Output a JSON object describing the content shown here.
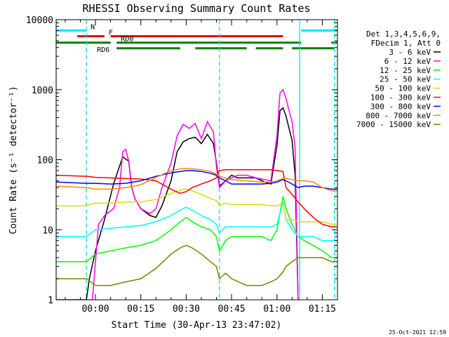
{
  "chart_data": {
    "type": "line",
    "title": "RHESSI Observing Summary Count Rates",
    "xlabel": "Start Time (30-Apr-13 23:47:02)",
    "ylabel": "Count Rate (s⁻¹ detector⁻¹)",
    "yscale": "log",
    "ylim": [
      1,
      10000
    ],
    "y_tick_labels": [
      "1",
      "10",
      "100",
      "1000",
      "10000"
    ],
    "y_tick_values": [
      1,
      10,
      100,
      1000,
      10000
    ],
    "xlim_minutes": [
      -13,
      80
    ],
    "x_tick_labels": [
      "00:00",
      "00:15",
      "00:30",
      "00:45",
      "01:00",
      "01:15"
    ],
    "x_tick_minutes": [
      0,
      15,
      30,
      45,
      60,
      75
    ],
    "timestamp": "25-Oct-2021 12:59",
    "legend_header": [
      "Det 1,3,4,5,6,9,",
      "FDecim 1, Att 0"
    ],
    "flags": [
      {
        "label": "N",
        "color": "#00e5ee",
        "y": 7000,
        "segments": [
          [
            -13,
            -3
          ],
          [
            68,
            80
          ]
        ]
      },
      {
        "label": "F",
        "color": "#e00000",
        "y": 5800,
        "segments": [
          [
            -6,
            3
          ],
          [
            5,
            62
          ]
        ]
      },
      {
        "label": "RD0",
        "color": "#008000",
        "y": 4700,
        "segments": [
          [
            -13,
            5
          ],
          [
            7,
            68
          ],
          [
            78,
            80
          ]
        ]
      },
      {
        "label": "RD6",
        "color": "#008000",
        "y": 3900,
        "segments": [
          [
            7,
            28
          ],
          [
            33,
            50
          ],
          [
            53,
            62
          ],
          [
            65,
            79
          ]
        ]
      }
    ],
    "vlines": [
      {
        "x": -3,
        "color": "#00e5ee",
        "style": "dashed"
      },
      {
        "x": 41,
        "color": "#00e5ee",
        "style": "dashed"
      },
      {
        "x": 79,
        "color": "#00e5ee",
        "style": "dashed"
      },
      {
        "x": -13,
        "color": "#00e5ee",
        "style": "solid"
      },
      {
        "x": 67.5,
        "color": "#00e5ee",
        "style": "solid"
      }
    ],
    "series": [
      {
        "name": "3 - 6 keV",
        "color": "#000000",
        "x": [
          -13,
          -3,
          -2,
          0,
          3,
          6,
          9,
          11,
          12,
          13,
          15,
          18,
          20,
          22,
          25,
          27,
          29,
          31,
          33,
          35,
          37,
          39,
          40,
          41,
          43,
          45,
          47,
          50,
          53,
          56,
          58,
          60,
          61,
          62,
          63,
          64,
          65,
          66,
          67
        ],
        "y": [
          1,
          1,
          2,
          5,
          14,
          45,
          110,
          95,
          40,
          28,
          20,
          16,
          15,
          22,
          50,
          130,
          180,
          200,
          210,
          170,
          230,
          170,
          90,
          42,
          50,
          60,
          55,
          55,
          55,
          48,
          45,
          160,
          500,
          550,
          420,
          280,
          190,
          60,
          1
        ]
      },
      {
        "name": "6 - 12 keV",
        "color": "#ff00ff",
        "x": [
          -13,
          -1,
          1,
          3,
          6,
          8,
          9,
          10,
          11,
          12,
          13,
          15,
          18,
          20,
          22,
          25,
          27,
          29,
          31,
          33,
          35,
          37,
          39,
          40,
          41,
          43,
          45,
          47,
          50,
          53,
          56,
          58,
          60,
          61,
          62,
          63,
          64,
          65,
          66,
          67
        ],
        "y": [
          1,
          1,
          12,
          16,
          20,
          40,
          130,
          140,
          95,
          40,
          28,
          20,
          17,
          20,
          40,
          90,
          220,
          320,
          280,
          330,
          200,
          350,
          250,
          80,
          40,
          50,
          55,
          60,
          60,
          55,
          52,
          50,
          220,
          900,
          1000,
          750,
          500,
          350,
          150,
          1
        ]
      },
      {
        "name": "12 - 25 keV",
        "color": "#00ff00",
        "x": [
          -13,
          -3,
          0,
          5,
          10,
          15,
          20,
          25,
          28,
          30,
          32,
          35,
          38,
          40,
          41,
          43,
          45,
          50,
          55,
          58,
          60,
          62,
          63,
          65,
          67,
          69,
          72,
          75,
          78,
          80
        ],
        "y": [
          3.5,
          3.5,
          4.5,
          5,
          5.5,
          6,
          7,
          10,
          13,
          15,
          13,
          11,
          10,
          8,
          5,
          7,
          8,
          8,
          8,
          7,
          10,
          30,
          20,
          12,
          8,
          7,
          6,
          5,
          4,
          4
        ]
      },
      {
        "name": "25 - 50 keV",
        "color": "#00ffff",
        "x": [
          -13,
          -3,
          0,
          5,
          10,
          15,
          20,
          25,
          28,
          30,
          32,
          35,
          38,
          40,
          41,
          43,
          45,
          50,
          55,
          58,
          60,
          62,
          63,
          65,
          67,
          69,
          72,
          75,
          78,
          80
        ],
        "y": [
          8,
          8,
          10,
          10.5,
          11,
          11.5,
          13,
          16,
          19,
          21,
          19,
          16,
          14,
          12,
          9,
          11,
          11,
          11,
          11,
          11,
          12,
          25,
          14,
          10,
          8,
          8,
          8,
          7,
          7,
          7
        ]
      },
      {
        "name": "50 - 100 keV",
        "color": "#dddd00",
        "x": [
          -13,
          -3,
          0,
          5,
          10,
          15,
          20,
          25,
          28,
          30,
          32,
          35,
          38,
          40,
          41,
          43,
          45,
          50,
          55,
          58,
          60,
          62,
          63,
          65,
          67,
          69,
          72,
          75,
          78,
          80
        ],
        "y": [
          22,
          22,
          24,
          24,
          25,
          25,
          27,
          33,
          37,
          38,
          36,
          32,
          28,
          26,
          22,
          24,
          23,
          23,
          23,
          22,
          22,
          24,
          14,
          14,
          13,
          13,
          13,
          13,
          12,
          12
        ]
      },
      {
        "name": "100 - 300 keV",
        "color": "#ff0000",
        "x": [
          -13,
          -3,
          0,
          5,
          10,
          15,
          20,
          25,
          28,
          30,
          32,
          35,
          38,
          40,
          41,
          43,
          45,
          50,
          55,
          58,
          60,
          62,
          63,
          65,
          67,
          69,
          72,
          75,
          78,
          80
        ],
        "y": [
          60,
          58,
          56,
          55,
          54,
          53,
          50,
          38,
          33,
          35,
          40,
          45,
          50,
          55,
          70,
          72,
          72,
          72,
          72,
          72,
          70,
          68,
          40,
          32,
          25,
          20,
          15,
          12,
          11,
          11
        ]
      },
      {
        "name": "300 - 800 keV",
        "color": "#0000ff",
        "x": [
          -13,
          -3,
          0,
          5,
          10,
          15,
          20,
          25,
          28,
          30,
          32,
          35,
          38,
          40,
          41,
          43,
          45,
          50,
          55,
          58,
          60,
          62,
          63,
          65,
          67,
          69,
          72,
          75,
          78,
          80
        ],
        "y": [
          48,
          46,
          46,
          45,
          46,
          50,
          58,
          65,
          68,
          70,
          70,
          68,
          64,
          60,
          55,
          50,
          45,
          45,
          45,
          46,
          48,
          52,
          50,
          45,
          40,
          42,
          42,
          40,
          38,
          38
        ]
      },
      {
        "name": "800 - 7000 keV",
        "color": "#ff8800",
        "x": [
          -13,
          -3,
          0,
          5,
          10,
          15,
          20,
          25,
          28,
          30,
          32,
          35,
          38,
          40,
          41,
          43,
          45,
          50,
          55,
          58,
          60,
          62,
          63,
          65,
          67,
          69,
          72,
          75,
          78,
          80
        ],
        "y": [
          42,
          40,
          38,
          38,
          40,
          44,
          56,
          70,
          74,
          75,
          74,
          72,
          68,
          62,
          58,
          55,
          52,
          50,
          48,
          48,
          50,
          54,
          54,
          52,
          50,
          50,
          48,
          40,
          36,
          36
        ]
      },
      {
        "name": "7000 - 15000 keV",
        "color": "#808000",
        "x": [
          -13,
          -3,
          0,
          5,
          10,
          15,
          20,
          25,
          28,
          30,
          32,
          35,
          38,
          40,
          41,
          43,
          45,
          50,
          55,
          58,
          60,
          62,
          63,
          65,
          67,
          69,
          72,
          75,
          78,
          80
        ],
        "y": [
          2,
          2,
          1.6,
          1.6,
          1.8,
          2,
          2.8,
          4.5,
          5.5,
          6,
          5.5,
          4.5,
          3.5,
          3,
          2,
          2.4,
          2,
          1.6,
          1.6,
          1.8,
          2,
          2.5,
          3,
          3.5,
          4,
          4,
          4,
          4,
          3.5,
          3.5
        ]
      }
    ]
  }
}
